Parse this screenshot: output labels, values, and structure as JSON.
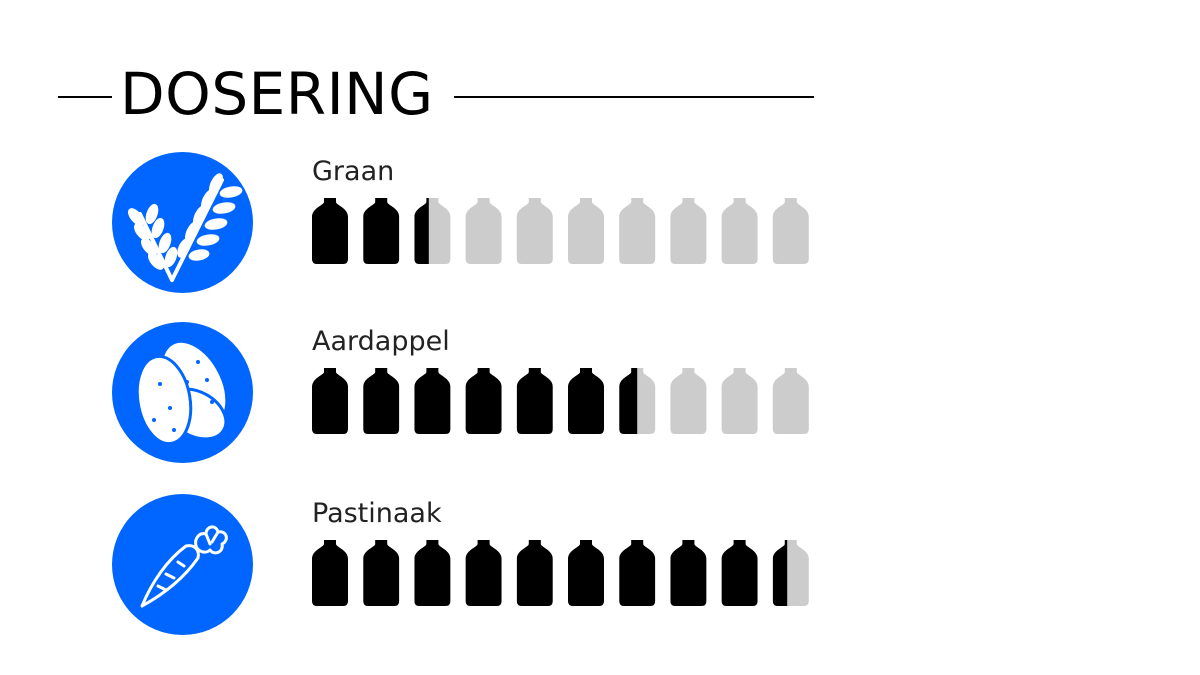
{
  "header": {
    "title": "DOSERING"
  },
  "colors": {
    "accent": "#0066ff",
    "filled": "#000000",
    "empty": "#cccccc",
    "icon": "#ffffff"
  },
  "rows": [
    {
      "label": "Graan",
      "icon": "wheat-icon",
      "value": 2.4,
      "max": 10
    },
    {
      "label": "Aardappel",
      "icon": "potato-icon",
      "value": 6.5,
      "max": 10
    },
    {
      "label": "Pastinaak",
      "icon": "parsnip-icon",
      "value": 9.4,
      "max": 10
    }
  ]
}
